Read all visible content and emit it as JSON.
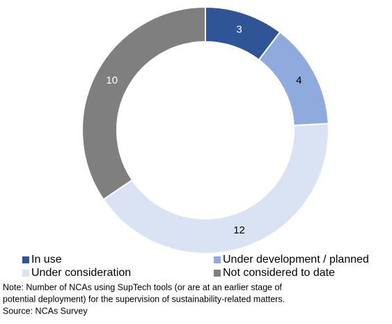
{
  "chart_data": {
    "type": "donut",
    "categories": [
      "In use",
      "Under development / planned",
      "Under consideration",
      "Not considered to date"
    ],
    "values": [
      3,
      4,
      12,
      10
    ],
    "colors": [
      "#2f5597",
      "#8faadc",
      "#dae3f3",
      "#7f7f7f"
    ],
    "legend": "bottom",
    "note": [
      "Note: Number of NCAs using SupTech tools (or are at an earlier stage of",
      "potential deployment) for the supervision of sustainability-related matters."
    ],
    "source": "Source: NCAs Survey"
  }
}
